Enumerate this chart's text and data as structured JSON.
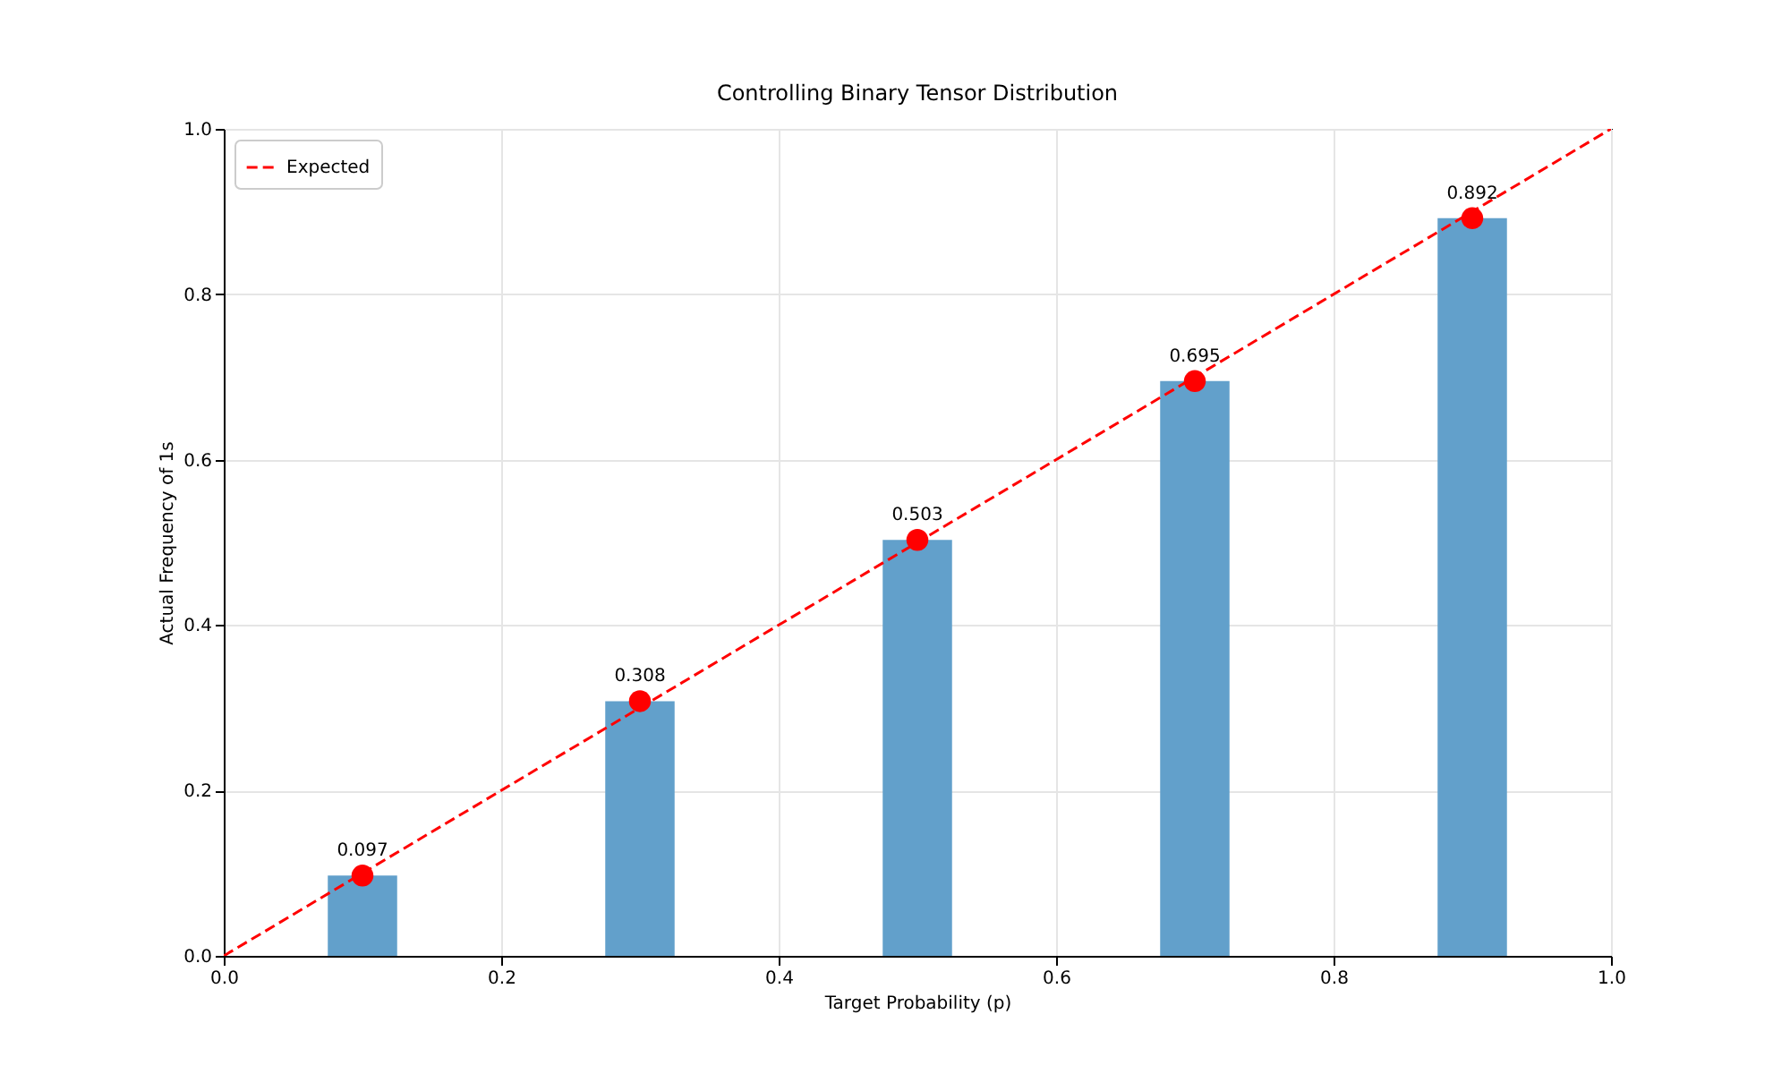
{
  "chart_data": {
    "type": "bar",
    "title": "Controlling Binary Tensor Distribution",
    "xlabel": "Target Probability (p)",
    "ylabel": "Actual Frequency of 1s",
    "xlim": [
      0,
      1
    ],
    "ylim": [
      0,
      1
    ],
    "xticks": [
      {
        "value": 0,
        "label": "0.0"
      },
      0.2,
      0.4,
      0.6,
      0.8,
      {
        "value": 1,
        "label": "1.0"
      }
    ],
    "yticks": [
      {
        "value": 0,
        "label": "0.0"
      },
      0.2,
      0.4,
      0.6,
      0.8,
      {
        "value": 1,
        "label": "1.0"
      }
    ],
    "grid": true,
    "legend": "top left",
    "series": [
      {
        "color": "#62a0cb",
        "x": [
          0.1,
          0.3,
          0.5,
          0.7,
          0.9
        ],
        "values": [
          0.097,
          0.308,
          0.503,
          0.695,
          0.892
        ]
      },
      {
        "type": "scatter",
        "color": "#ff0000",
        "marker": "circle",
        "x": [
          0.1,
          0.3,
          0.5,
          0.7,
          0.9
        ],
        "values": [
          0.097,
          0.308,
          0.503,
          0.695,
          0.892
        ],
        "value_labels": [
          "0.097",
          "0.308",
          "0.503",
          "0.695",
          "0.892"
        ]
      },
      {
        "type": "line",
        "name": "Expected",
        "color": "#ff0000",
        "line_style": "dashed",
        "x": [
          0,
          1
        ],
        "values": [
          0,
          1
        ]
      }
    ]
  }
}
